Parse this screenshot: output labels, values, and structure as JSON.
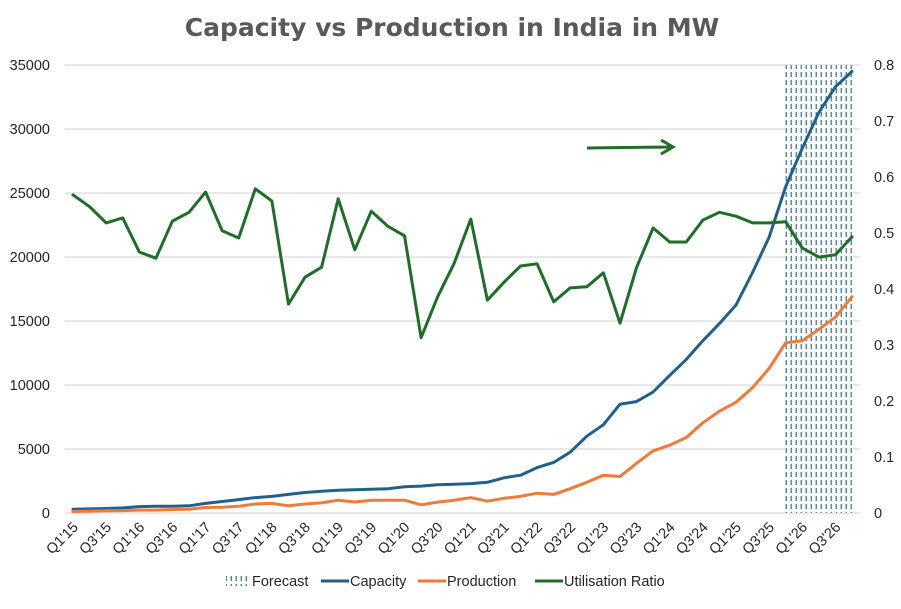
{
  "chart_data": {
    "type": "line",
    "title": "Capacity vs Production in India in MW",
    "xlabel": "",
    "ylabel": "",
    "y2label": "",
    "ylim": [
      0,
      35000
    ],
    "y2lim": [
      0,
      0.8
    ],
    "yticks": [
      "0",
      "5000",
      "10000",
      "15000",
      "20000",
      "25000",
      "30000",
      "35000"
    ],
    "y2ticks": [
      "0",
      "0.1",
      "0.2",
      "0.3",
      "0.4",
      "0.5",
      "0.6",
      "0.7",
      "0.8"
    ],
    "grid": true,
    "legend_position": "bottom",
    "x": [
      "Q1'15",
      "Q2'15",
      "Q3'15",
      "Q4'15",
      "Q1'16",
      "Q2'16",
      "Q3'16",
      "Q4'16",
      "Q1'17",
      "Q2'17",
      "Q3'17",
      "Q4'17",
      "Q1'18",
      "Q2'18",
      "Q3'18",
      "Q4'18",
      "Q1'19",
      "Q2'19",
      "Q3'19",
      "Q4'19",
      "Q1'20",
      "Q2'20",
      "Q3'20",
      "Q4'20",
      "Q1'21",
      "Q2'21",
      "Q3'21",
      "Q4'21",
      "Q1'22",
      "Q2'22",
      "Q3'22",
      "Q4'22",
      "Q1'23",
      "Q2'23",
      "Q3'23",
      "Q4'23",
      "Q1'24",
      "Q2'24",
      "Q3'24",
      "Q4'24",
      "Q1'25",
      "Q2'25",
      "Q3'25",
      "Q4'25",
      "Q1'26",
      "Q2'26",
      "Q3'26",
      "Q4'26"
    ],
    "xtick_labels": [
      "Q1'15",
      "Q3'15",
      "Q1'16",
      "Q3'16",
      "Q1'17",
      "Q3'17",
      "Q1'18",
      "Q3'18",
      "Q1'19",
      "Q3'19",
      "Q1'20",
      "Q3'20",
      "Q1'21",
      "Q3'21",
      "Q1'22",
      "Q3'22",
      "Q1'23",
      "Q3'23",
      "Q1'24",
      "Q3'24",
      "Q1'25",
      "Q3'25",
      "Q1'26",
      "Q3'26"
    ],
    "forecast_range": [
      "Q4'25",
      "Q4'26"
    ],
    "series": [
      {
        "name": "Capacity",
        "axis": "left",
        "color": "#1f6188",
        "values": [
          300,
          320,
          350,
          400,
          500,
          520,
          530,
          560,
          750,
          900,
          1050,
          1200,
          1300,
          1450,
          1600,
          1700,
          1780,
          1820,
          1850,
          1900,
          2050,
          2100,
          2200,
          2250,
          2300,
          2400,
          2750,
          2950,
          3550,
          3950,
          4750,
          6000,
          6900,
          8500,
          8700,
          9450,
          10750,
          12000,
          13450,
          14800,
          16250,
          18800,
          21550,
          25500,
          28500,
          31300,
          33300,
          34500
        ]
      },
      {
        "name": "Production",
        "axis": "left",
        "color": "#f07a37",
        "values": [
          120,
          150,
          170,
          190,
          230,
          230,
          270,
          300,
          430,
          450,
          520,
          700,
          750,
          560,
          700,
          790,
          1000,
          860,
          1000,
          1000,
          1000,
          640,
          850,
          1000,
          1200,
          920,
          1150,
          1300,
          1550,
          1450,
          1900,
          2400,
          2950,
          2850,
          3880,
          4860,
          5300,
          5900,
          7050,
          7950,
          8650,
          9800,
          11300,
          13300,
          13450,
          14350,
          15300,
          16900
        ]
      },
      {
        "name": "Utilisation Ratio",
        "axis": "right",
        "color": "#1e6e28",
        "values": [
          0.568,
          0.547,
          0.518,
          0.527,
          0.466,
          0.455,
          0.521,
          0.537,
          0.573,
          0.504,
          0.491,
          0.579,
          0.557,
          0.373,
          0.421,
          0.439,
          0.561,
          0.47,
          0.539,
          0.512,
          0.495,
          0.313,
          0.386,
          0.446,
          0.525,
          0.38,
          0.412,
          0.441,
          0.445,
          0.377,
          0.402,
          0.404,
          0.429,
          0.339,
          0.438,
          0.509,
          0.484,
          0.484,
          0.523,
          0.537,
          0.53,
          0.518,
          0.518,
          0.52,
          0.473,
          0.457,
          0.461,
          0.493
        ]
      }
    ],
    "annotations": [
      {
        "type": "arrow",
        "direction": "right",
        "color": "#1e6e28",
        "points_to": "right-axis"
      }
    ],
    "legend": [
      {
        "label": "Forecast",
        "marker": "hatched-box",
        "color": "#1f6188"
      },
      {
        "label": "Capacity",
        "marker": "line",
        "color": "#1f6188"
      },
      {
        "label": "Production",
        "marker": "line",
        "color": "#f07a37"
      },
      {
        "label": "Utilisation Ratio",
        "marker": "line",
        "color": "#1e6e28"
      }
    ]
  }
}
